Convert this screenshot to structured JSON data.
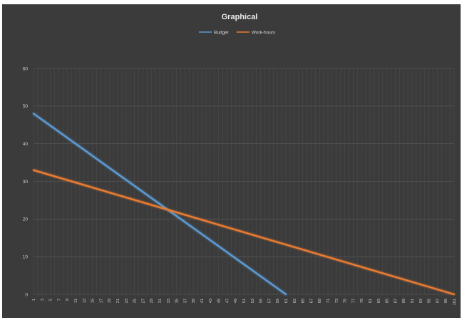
{
  "chart_data": {
    "type": "line",
    "title": "Graphical",
    "xlabel": "",
    "ylabel": "",
    "legend_position": "top-center",
    "grid": true,
    "x": [
      1,
      3,
      5,
      7,
      9,
      11,
      13,
      15,
      17,
      19,
      21,
      23,
      25,
      27,
      29,
      31,
      33,
      35,
      37,
      39,
      41,
      43,
      45,
      47,
      49,
      51,
      53,
      55,
      57,
      59,
      61,
      63,
      65,
      67,
      69,
      71,
      73,
      75,
      77,
      79,
      81,
      83,
      85,
      87,
      89,
      91,
      93,
      95,
      97,
      99,
      101
    ],
    "xlim": [
      1,
      101
    ],
    "ylim": [
      0,
      60
    ],
    "yticks": [
      0,
      10,
      20,
      30,
      40,
      50,
      60
    ],
    "colors": {
      "background": "#3b3b3b",
      "grid": "#555555",
      "Budget": "#5b9bd5",
      "Work-hours": "#ed7d31"
    },
    "series": [
      {
        "name": "Budget",
        "x": [
          1,
          61
        ],
        "y": [
          48,
          0
        ]
      },
      {
        "name": "Work-hours",
        "x": [
          1,
          101
        ],
        "y": [
          33,
          0
        ]
      }
    ]
  }
}
